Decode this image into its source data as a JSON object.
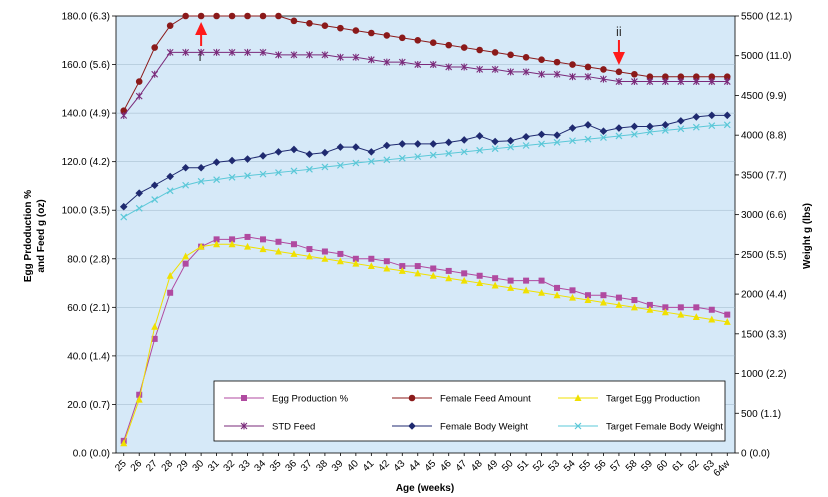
{
  "chart_data": {
    "type": "line",
    "xlabel": "Age (weeks)",
    "ylabel_left_line1": "Egg Prdoduction %",
    "ylabel_left_line2": "and Feed g (oz)",
    "ylabel_right": "Weight g (lbs)",
    "x": [
      "25",
      "26",
      "27",
      "28",
      "29",
      "30",
      "31",
      "32",
      "33",
      "34",
      "35",
      "36",
      "37",
      "38",
      "39",
      "40",
      "41",
      "42",
      "43",
      "44",
      "45",
      "46",
      "47",
      "48",
      "49",
      "50",
      "51",
      "52",
      "53",
      "54",
      "55",
      "56",
      "57",
      "58",
      "59",
      "60",
      "61",
      "62",
      "63",
      "64w"
    ],
    "y_left_ticks": [
      "0.0 (0.0)",
      "20.0 (0.7)",
      "40.0 (1.4)",
      "60.0 (2.1)",
      "80.0 (2.8)",
      "100.0 (3.5)",
      "120.0 (4.2)",
      "140.0 (4.9)",
      "160.0 (5.6)",
      "180.0 (6.3)"
    ],
    "y_right_ticks": [
      "0 (0.0)",
      "500 (1.1)",
      "1000 (2.2)",
      "1500 (3.3)",
      "2000 (4.4)",
      "2500 (5.5)",
      "3000 (6.6)",
      "3500 (7.7)",
      "4000 (8.8)",
      "4500 (9.9)",
      "5000 (11.0)",
      "5500 (12.1)"
    ],
    "ylim_left": [
      0,
      180
    ],
    "ylim_right": [
      0,
      5500
    ],
    "plot_background": "#d6e9f8",
    "series": [
      {
        "name": "Egg Production %",
        "axis": "left",
        "marker": "square",
        "color": "#b04aa0",
        "values": [
          5,
          24,
          47,
          66,
          78,
          85,
          88,
          88,
          89,
          88,
          87,
          86,
          84,
          83,
          82,
          80,
          80,
          79,
          77,
          77,
          76,
          75,
          74,
          73,
          72,
          71,
          71,
          71,
          68,
          67,
          65,
          65,
          64,
          63,
          61,
          60,
          60,
          60,
          59,
          57
        ]
      },
      {
        "name": "Female Feed Amount",
        "axis": "left",
        "marker": "circle",
        "color": "#8b1a1a",
        "values": [
          141,
          153,
          167,
          176,
          180,
          180,
          180,
          180,
          180,
          180,
          180,
          178,
          177,
          176,
          175,
          174,
          173,
          172,
          171,
          170,
          169,
          168,
          167,
          166,
          165,
          164,
          163,
          162,
          161,
          160,
          159,
          158,
          157,
          156,
          155,
          155,
          155,
          155,
          155,
          155
        ]
      },
      {
        "name": "Target Egg Production",
        "axis": "left",
        "marker": "triangle",
        "color": "#f0e000",
        "values": [
          4,
          22,
          52,
          73,
          81,
          85,
          86,
          86,
          85,
          84,
          83,
          82,
          81,
          80,
          79,
          78,
          77,
          76,
          75,
          74,
          73,
          72,
          71,
          70,
          69,
          68,
          67,
          66,
          65,
          64,
          63,
          62,
          61,
          60,
          59,
          58,
          57,
          56,
          55,
          54
        ]
      },
      {
        "name": "STD Feed",
        "axis": "left",
        "marker": "star",
        "color": "#7a2a7a",
        "values": [
          139,
          147,
          156,
          165,
          165,
          165,
          165,
          165,
          165,
          165,
          164,
          164,
          164,
          164,
          163,
          163,
          162,
          161,
          161,
          160,
          160,
          159,
          159,
          158,
          158,
          157,
          157,
          156,
          156,
          155,
          155,
          154,
          153,
          153,
          153,
          153,
          153,
          153,
          153,
          153
        ]
      },
      {
        "name": "Female Body Weight",
        "axis": "right",
        "marker": "diamond",
        "color": "#1f2a70",
        "values": [
          3100,
          3270,
          3370,
          3480,
          3590,
          3590,
          3660,
          3680,
          3700,
          3740,
          3790,
          3820,
          3760,
          3780,
          3850,
          3850,
          3790,
          3870,
          3890,
          3890,
          3890,
          3910,
          3940,
          3990,
          3920,
          3930,
          3980,
          4010,
          4000,
          4090,
          4130,
          4050,
          4090,
          4110,
          4110,
          4130,
          4180,
          4230,
          4250,
          4250
        ]
      },
      {
        "name": "Target Female Body Weight",
        "axis": "right",
        "marker": "x",
        "color": "#5bc8d8",
        "values": [
          2970,
          3080,
          3190,
          3300,
          3370,
          3420,
          3440,
          3470,
          3490,
          3510,
          3530,
          3550,
          3570,
          3600,
          3620,
          3650,
          3670,
          3690,
          3710,
          3730,
          3750,
          3770,
          3790,
          3810,
          3830,
          3850,
          3870,
          3890,
          3910,
          3930,
          3950,
          3970,
          3990,
          4010,
          4040,
          4060,
          4080,
          4100,
          4120,
          4130
        ]
      }
    ],
    "legend_rows": [
      [
        "Egg Production %",
        "Female Feed Amount",
        "Target Egg Production"
      ],
      [
        "STD Feed",
        "Female Body Weight",
        "Target Female Body Weight"
      ]
    ],
    "annotations": [
      {
        "label": "i",
        "x": "30",
        "arrow": "up"
      },
      {
        "label": "ii",
        "x": "57",
        "arrow": "down"
      }
    ]
  }
}
